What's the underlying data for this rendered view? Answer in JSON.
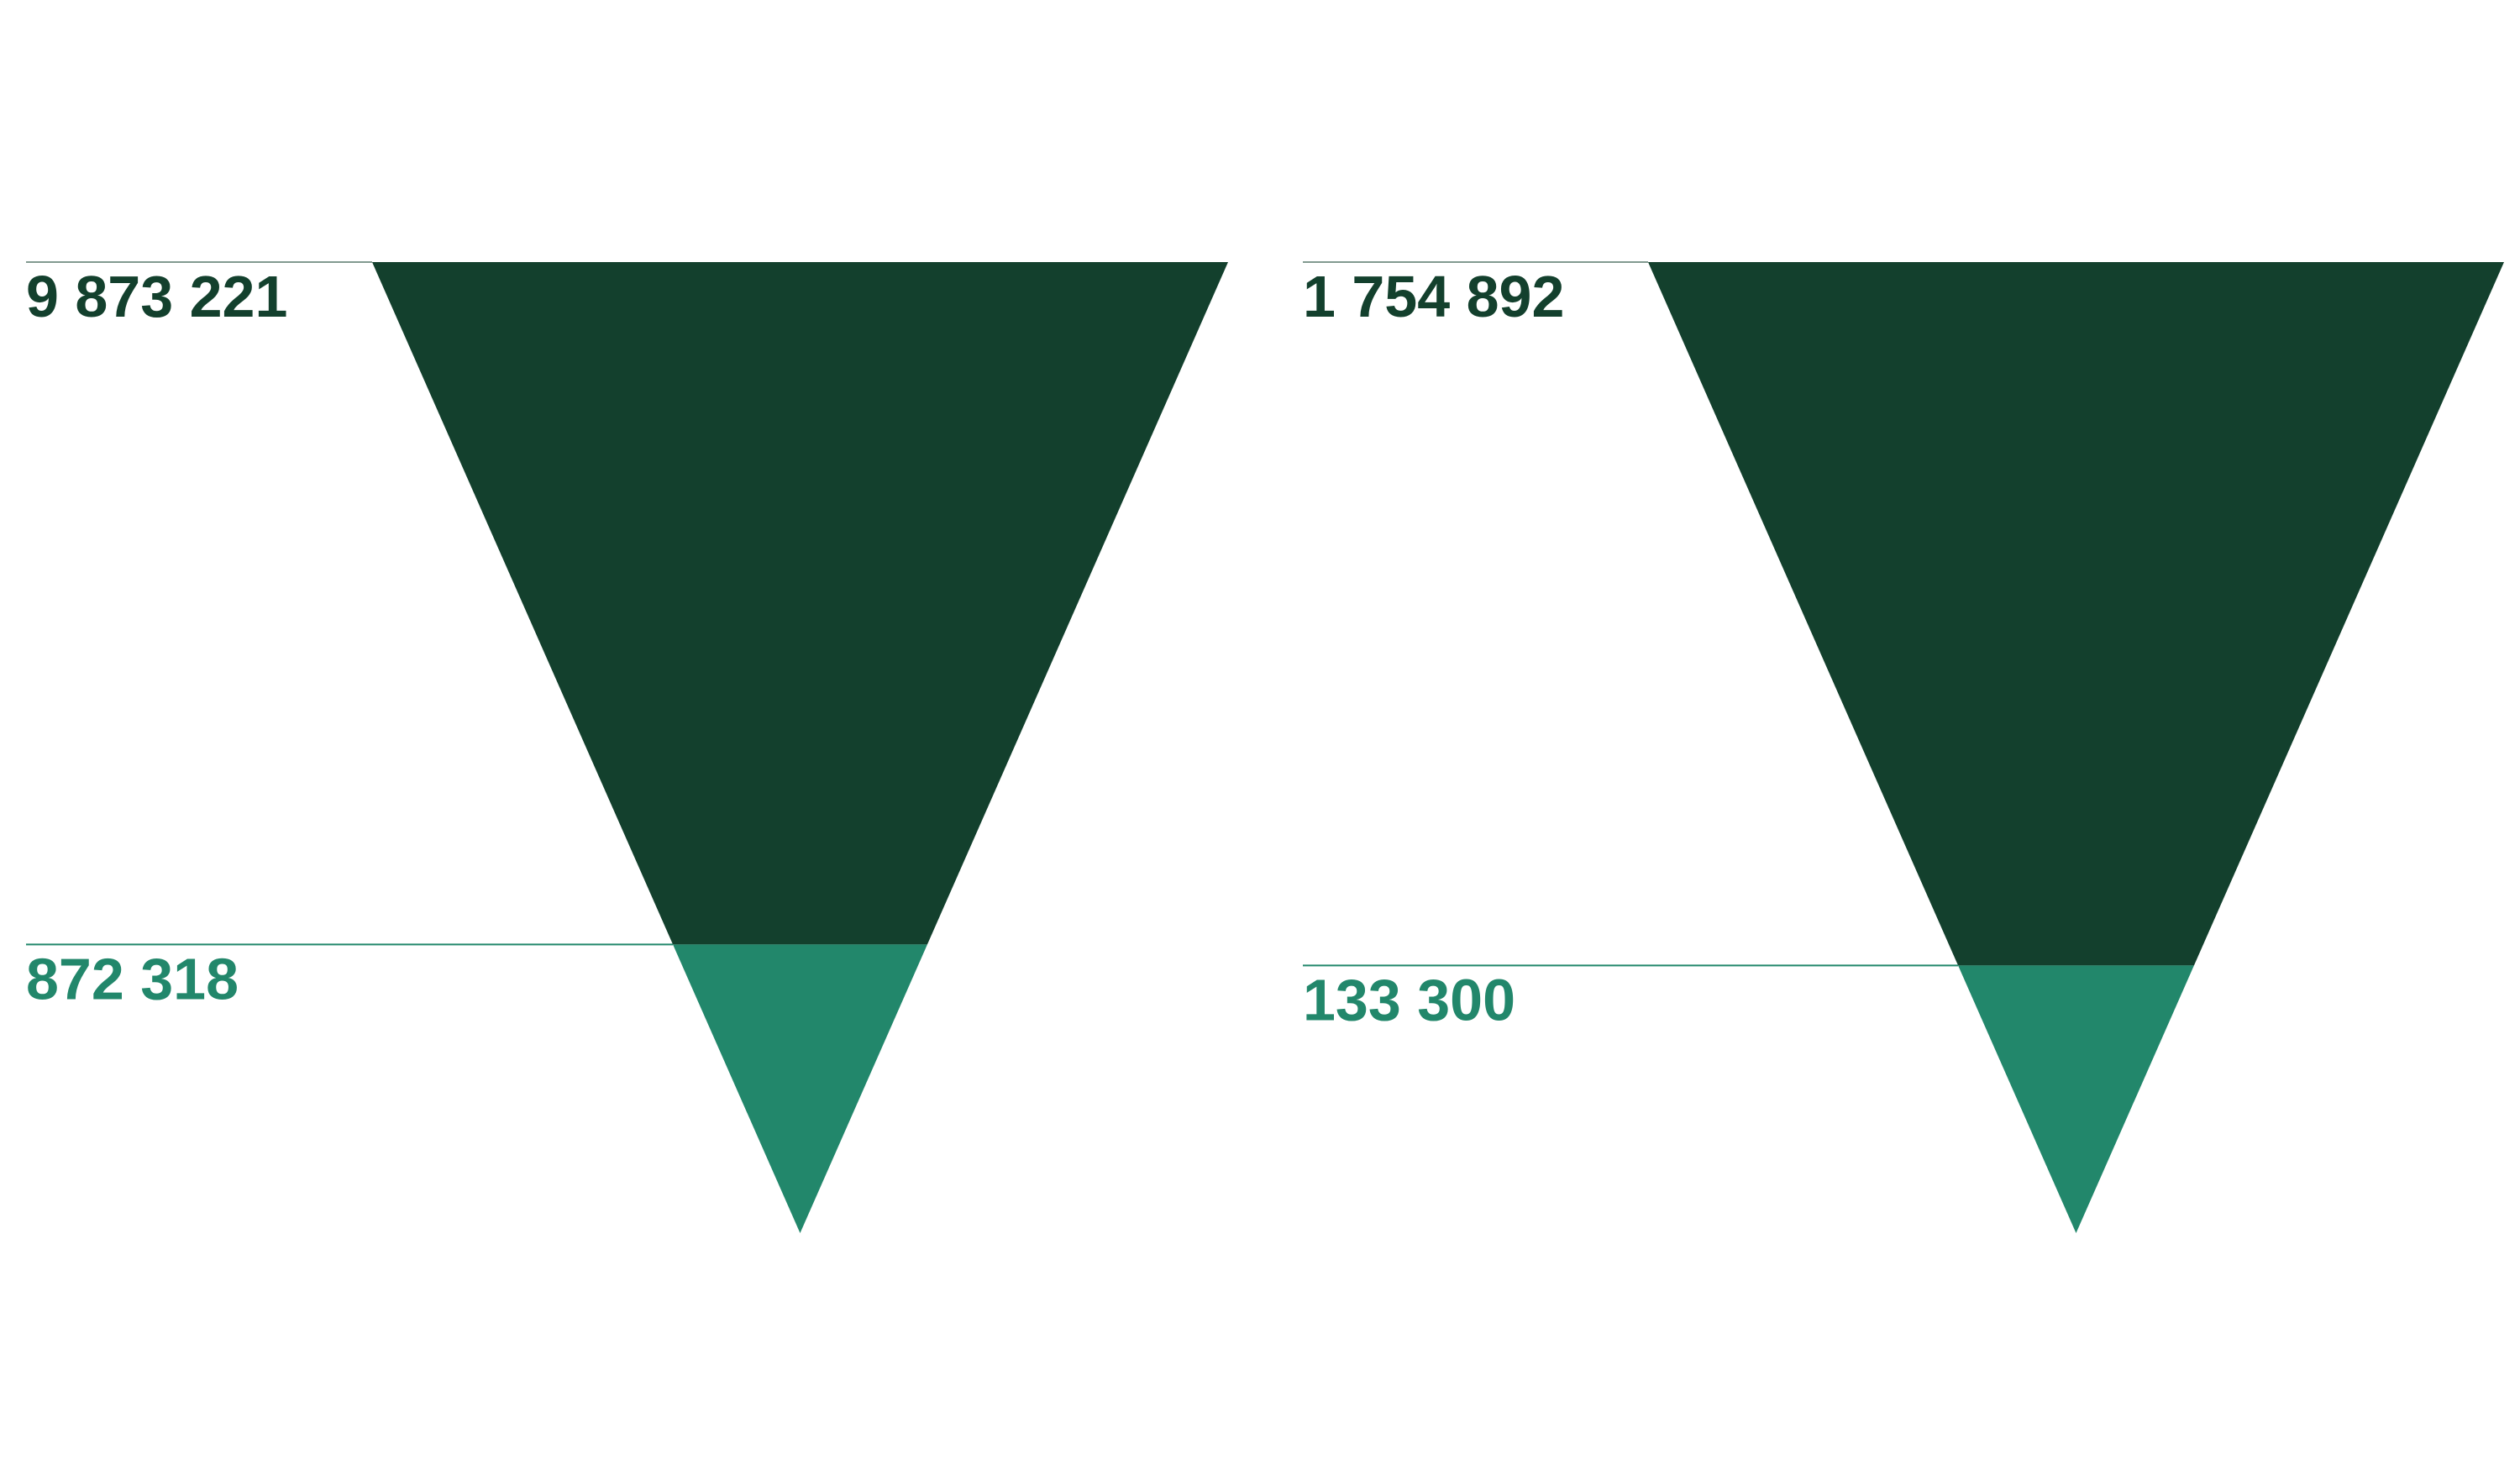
{
  "chart_data": [
    {
      "type": "funnel",
      "stages": [
        {
          "value": 9873221,
          "label": "9 873 221",
          "color": "#13402d"
        },
        {
          "value": 872318,
          "label": "872 318",
          "color": "#22876b"
        }
      ]
    },
    {
      "type": "funnel",
      "stages": [
        {
          "value": 1754892,
          "label": "1 754 892",
          "color": "#13402d"
        },
        {
          "value": 133300,
          "label": "133 300",
          "color": "#22876b"
        }
      ]
    }
  ],
  "colors": {
    "dark_green": "#13402d",
    "teal_green": "#22876b"
  }
}
